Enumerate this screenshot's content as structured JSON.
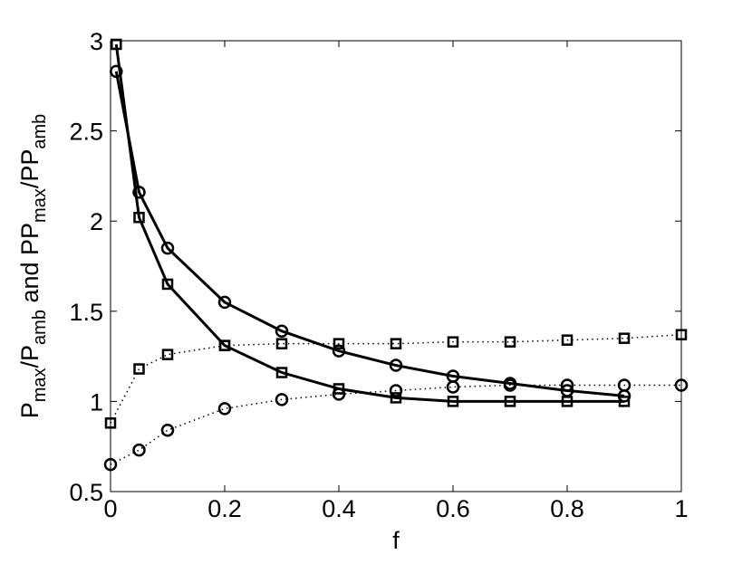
{
  "chart_data": {
    "type": "line",
    "xlabel": "f",
    "ylabel": [
      {
        "text": "P"
      },
      {
        "text": "max",
        "sub": true
      },
      {
        "text": "/P"
      },
      {
        "text": "amb",
        "sub": true
      },
      {
        "text": " and PP"
      },
      {
        "text": "max",
        "sub": true
      },
      {
        "text": "/PP"
      },
      {
        "text": "amb",
        "sub": true
      }
    ],
    "xlim": [
      0,
      1
    ],
    "ylim": [
      0.5,
      3
    ],
    "xticks": [
      0,
      0.2,
      0.4,
      0.6,
      0.8,
      1
    ],
    "yticks": [
      0.5,
      1,
      1.5,
      2,
      2.5,
      3
    ],
    "box": true,
    "series": [
      {
        "color": "#000000",
        "line": "solid",
        "marker": "square",
        "x": [
          0.01,
          0.05,
          0.1,
          0.2,
          0.3,
          0.4,
          0.5,
          0.6,
          0.7,
          0.8,
          0.9
        ],
        "values": [
          2.98,
          2.02,
          1.65,
          1.31,
          1.16,
          1.07,
          1.02,
          1.0,
          1.0,
          1.0,
          1.0
        ]
      },
      {
        "color": "#000000",
        "line": "solid",
        "marker": "circle",
        "x": [
          0.01,
          0.05,
          0.1,
          0.2,
          0.3,
          0.4,
          0.5,
          0.6,
          0.7,
          0.8,
          0.9
        ],
        "values": [
          2.83,
          2.16,
          1.85,
          1.55,
          1.39,
          1.28,
          1.2,
          1.14,
          1.1,
          1.06,
          1.03
        ]
      },
      {
        "color": "#000000",
        "line": "dotted",
        "marker": "square",
        "x": [
          0,
          0.05,
          0.1,
          0.2,
          0.3,
          0.4,
          0.5,
          0.6,
          0.7,
          0.8,
          0.9,
          1
        ],
        "values": [
          0.88,
          1.18,
          1.26,
          1.31,
          1.32,
          1.32,
          1.32,
          1.33,
          1.33,
          1.34,
          1.35,
          1.37
        ]
      },
      {
        "color": "#000000",
        "line": "dotted",
        "marker": "circle",
        "x": [
          0,
          0.05,
          0.1,
          0.2,
          0.3,
          0.4,
          0.5,
          0.6,
          0.7,
          0.8,
          0.9,
          1
        ],
        "values": [
          0.65,
          0.73,
          0.84,
          0.96,
          1.01,
          1.04,
          1.06,
          1.08,
          1.09,
          1.09,
          1.09,
          1.09
        ]
      }
    ]
  }
}
